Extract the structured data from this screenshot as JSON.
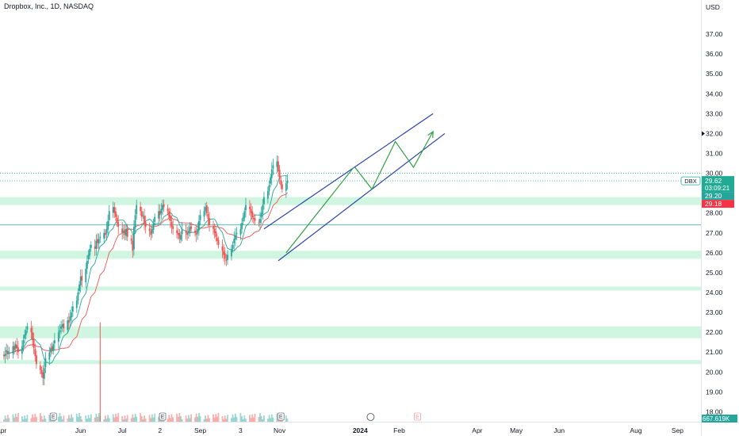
{
  "header": {
    "title": "Dropbox, Inc., 1D, NASDAQ"
  },
  "chart_data": {
    "type": "candlestick",
    "symbol": "DBX",
    "exchange": "NASDAQ",
    "interval": "1D",
    "currency": "USD",
    "y_ticks": [
      "37.00",
      "36.00",
      "35.00",
      "34.00",
      "33.00",
      "32.00",
      "31.00",
      "30.00",
      "29.00",
      "28.00",
      "27.00",
      "26.00",
      "25.00",
      "24.00",
      "23.00",
      "22.00",
      "21.00",
      "20.00",
      "19.00",
      "18.00"
    ],
    "ylim": [
      17.5,
      38
    ],
    "x_ticks": [
      "Apr",
      "Jun",
      "Jul",
      "2",
      "Sep",
      "3",
      "Nov",
      "2024",
      "Feb",
      "Apr",
      "May",
      "Jun",
      "Aug",
      "Sep"
    ],
    "x_tick_dates": [
      "2023-04-01",
      "2023-06-01",
      "2023-07-03",
      "2023-08-01",
      "2023-09-01",
      "2023-10-02",
      "2023-11-01",
      "2024-01-02",
      "2024-02-01",
      "2024-04-01",
      "2024-05-01",
      "2024-06-03",
      "2024-08-01",
      "2024-09-02"
    ],
    "x_range": [
      "2023-03-31",
      "2024-09-20"
    ],
    "closes": [
      20.8,
      20.9,
      21.1,
      20.9,
      21.0,
      21.3,
      21.1,
      21.4,
      21.2,
      21.0,
      21.3,
      21.6,
      21.9,
      22.1,
      22.3,
      22.0,
      21.6,
      21.2,
      20.8,
      20.4,
      20.1,
      19.9,
      19.7,
      20.2,
      20.7,
      21.0,
      21.2,
      21.1,
      21.4,
      21.6,
      22.0,
      22.1,
      22.3,
      22.4,
      22.2,
      22.6,
      22.5,
      22.8,
      23.0,
      23.3,
      23.6,
      24.0,
      24.4,
      24.8,
      24.6,
      25.2,
      25.6,
      25.9,
      26.2,
      26.4,
      26.2,
      26.6,
      26.5,
      26.7,
      26.8,
      27.0,
      26.9,
      27.2,
      27.6,
      28.1,
      28.3,
      28.0,
      27.8,
      27.5,
      27.3,
      27.0,
      27.1,
      26.9,
      27.2,
      26.8,
      26.6,
      26.1,
      27.3,
      27.9,
      28.4,
      28.1,
      27.8,
      27.9,
      27.5,
      27.3,
      27.1,
      26.9,
      27.2,
      27.5,
      27.8,
      28.1,
      27.9,
      28.2,
      28.4,
      28.3,
      28.1,
      27.8,
      27.6,
      27.3,
      27.2,
      27.0,
      26.9,
      26.7,
      26.9,
      27.2,
      27.0,
      26.9,
      27.1,
      27.3,
      27.2,
      27.0,
      26.9,
      27.2,
      27.6,
      27.9,
      28.1,
      28.3,
      28.0,
      27.7,
      27.4,
      27.2,
      27.0,
      26.8,
      26.6,
      26.4,
      26.1,
      25.9,
      25.7,
      25.6,
      25.9,
      26.2,
      26.4,
      26.7,
      26.9,
      27.0,
      27.2,
      27.5,
      27.8,
      28.1,
      28.4,
      28.2,
      28.0,
      27.8,
      27.7,
      27.6,
      27.5,
      27.7,
      28.0,
      28.4,
      28.8,
      29.1,
      29.4,
      29.8,
      30.2,
      30.4,
      30.6,
      30.1,
      29.7,
      29.4,
      29.2,
      29.5,
      29.62
    ],
    "current_price": 29.62,
    "countdown": "03:09:21",
    "ma_fast_last": 29.2,
    "ma_slow_last": 29.18,
    "volume_last": "667.619K",
    "earnings_marker": "E",
    "earnings_dates": [
      "2023-05-11",
      "2023-08-03",
      "2023-11-02",
      "2024-02-15"
    ],
    "zones": [
      [
        28.4,
        28.8
      ],
      [
        25.7,
        26.1
      ],
      [
        24.1,
        24.3
      ],
      [
        21.7,
        22.3
      ],
      [
        20.4,
        20.6
      ]
    ],
    "hlines": [
      30.0,
      27.4
    ],
    "channel_upper": [
      [
        "2023-10-20",
        27.2
      ],
      [
        "2024-02-27",
        33.0
      ]
    ],
    "channel_lower": [
      [
        "2023-10-31",
        25.6
      ],
      [
        "2024-03-07",
        32.0
      ]
    ],
    "projection": [
      [
        "2023-12-29",
        30.3
      ],
      [
        "2024-01-11",
        29.2
      ],
      [
        "2024-01-29",
        31.6
      ],
      [
        "2024-02-12",
        30.3
      ],
      [
        "2024-02-27",
        32.1
      ]
    ],
    "grid": false,
    "colors": {
      "up": "#26a69a",
      "down": "#ef5350",
      "zone": "#c8f5dc",
      "channel": "#2943a8",
      "projection": "#2ea043",
      "ma_fast": "#26a69a",
      "ma_slow": "#ef5350",
      "price_label": "#22ab94",
      "ma_slow_label": "#f23645",
      "volume_spike": "#ef5350"
    }
  }
}
